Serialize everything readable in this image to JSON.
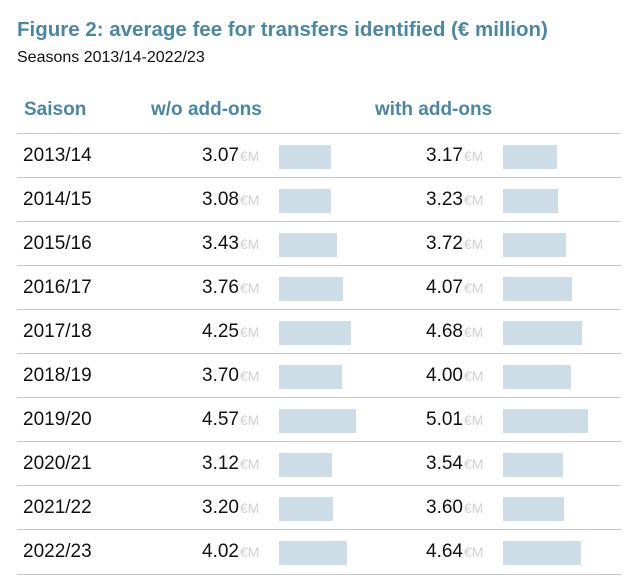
{
  "title": "Figure 2: average fee for transfers identified (€ million)",
  "subtitle": "Seasons 2013/14-2022/23",
  "columns": [
    "Saison",
    "w/o add-ons",
    "with add-ons"
  ],
  "unit": "€M",
  "colors": {
    "accent": "#4a87a5",
    "bar": "#cddde7",
    "unit": "#d0d0d0",
    "rule": "#c8c8c8"
  },
  "chart_data": {
    "type": "table",
    "title": "Figure 2: average fee for transfers identified (€ million)",
    "subtitle": "Seasons 2013/14-2022/23",
    "categories": [
      "2013/14",
      "2014/15",
      "2015/16",
      "2016/17",
      "2017/18",
      "2018/19",
      "2019/20",
      "2020/21",
      "2021/22",
      "2022/23"
    ],
    "series": [
      {
        "name": "w/o add-ons",
        "values": [
          3.07,
          3.08,
          3.43,
          3.76,
          4.25,
          3.7,
          4.57,
          3.12,
          3.2,
          4.02
        ]
      },
      {
        "name": "with add-ons",
        "values": [
          3.17,
          3.23,
          3.72,
          4.07,
          4.68,
          4.0,
          5.01,
          3.54,
          3.6,
          4.64
        ]
      }
    ],
    "unit": "€M"
  }
}
